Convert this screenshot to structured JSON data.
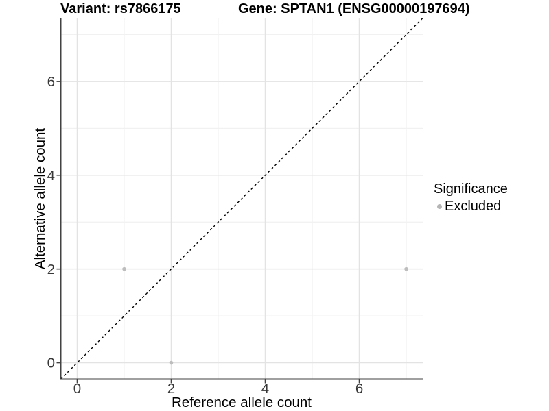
{
  "chart_data": {
    "type": "scatter",
    "titles": {
      "left": "Variant: rs7866175",
      "right": "Gene: SPTAN1 (ENSG00000197694)"
    },
    "xlabel": "Reference allele count",
    "ylabel": "Alternative allele count",
    "xlim": [
      -0.35,
      7.35
    ],
    "ylim": [
      -0.35,
      7.35
    ],
    "xticks": [
      0,
      2,
      4,
      6
    ],
    "yticks": [
      0,
      2,
      4,
      6
    ],
    "minor_gridlines": [
      1,
      3,
      5,
      7
    ],
    "grid": "major-even-minor-odd",
    "panel_background": "#ffffff",
    "identity_line": {
      "style": "dashed",
      "color": "#000000",
      "equation": "y = x"
    },
    "series": [
      {
        "name": "Excluded",
        "color": "#bdbdbd",
        "marker": "circle",
        "points": [
          [
            1,
            2
          ],
          [
            2,
            0
          ],
          [
            7,
            2
          ]
        ]
      }
    ],
    "legend": {
      "title": "Significance",
      "position": "right",
      "items": [
        {
          "label": "Excluded",
          "color": "#b5b5b5"
        }
      ]
    },
    "colors": {
      "axis_line": "#424242",
      "tick_mark": "#424242",
      "tick_label": "#383838",
      "major_grid": "#e3e3e3",
      "minor_grid": "#f1f1f1",
      "point": "#bdbdbd"
    }
  }
}
